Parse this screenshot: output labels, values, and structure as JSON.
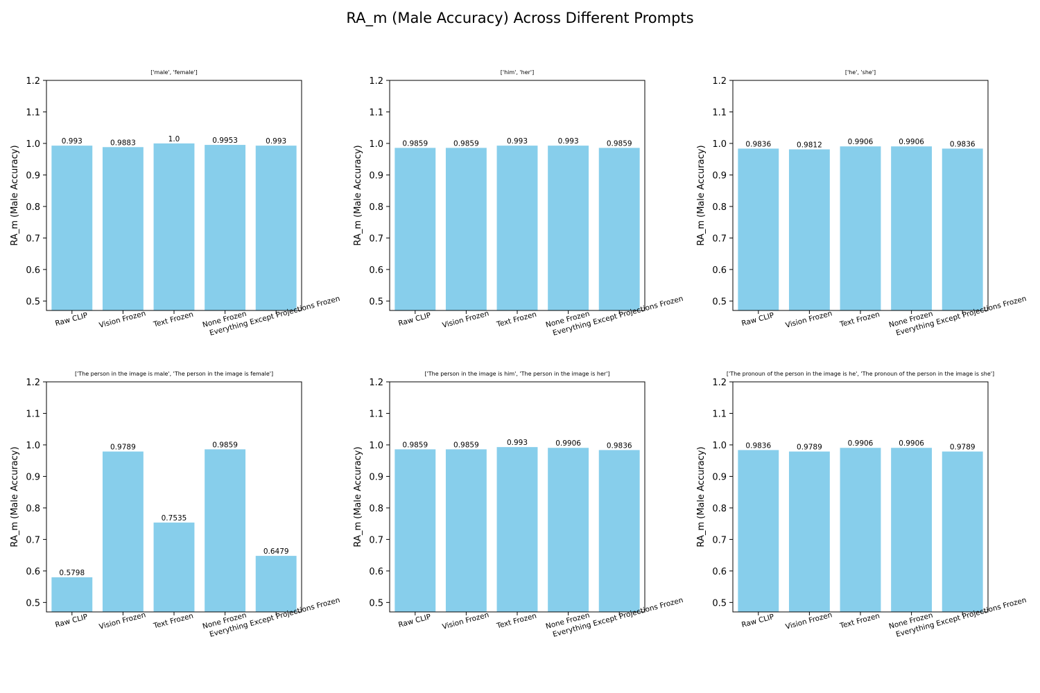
{
  "figure": {
    "title": "RA_m (Male Accuracy) Across Different Prompts"
  },
  "chart_data": [
    {
      "type": "bar",
      "title": "['male', 'female']",
      "ylabel": "RA_m (Male Accuracy)",
      "ylim": [
        0.47,
        1.2
      ],
      "yticks": [
        0.5,
        0.6,
        0.7,
        0.8,
        0.9,
        1.0,
        1.1,
        1.2
      ],
      "categories": [
        "Raw CLIP",
        "Vision Frozen",
        "Text Frozen",
        "None Frozen",
        "Everything Except Projections Frozen"
      ],
      "values": [
        0.993,
        0.9883,
        1.0,
        0.9953,
        0.993
      ],
      "value_labels": [
        "0.993",
        "0.9883",
        "1.0",
        "0.9953",
        "0.993"
      ],
      "bar_color": "#87ceeb"
    },
    {
      "type": "bar",
      "title": "['him', 'her']",
      "ylabel": "RA_m (Male Accuracy)",
      "ylim": [
        0.47,
        1.2
      ],
      "yticks": [
        0.5,
        0.6,
        0.7,
        0.8,
        0.9,
        1.0,
        1.1,
        1.2
      ],
      "categories": [
        "Raw CLIP",
        "Vision Frozen",
        "Text Frozen",
        "None Frozen",
        "Everything Except Projections Frozen"
      ],
      "values": [
        0.9859,
        0.9859,
        0.993,
        0.993,
        0.9859
      ],
      "value_labels": [
        "0.9859",
        "0.9859",
        "0.993",
        "0.993",
        "0.9859"
      ],
      "bar_color": "#87ceeb"
    },
    {
      "type": "bar",
      "title": "['he', 'she']",
      "ylabel": "RA_m (Male Accuracy)",
      "ylim": [
        0.47,
        1.2
      ],
      "yticks": [
        0.5,
        0.6,
        0.7,
        0.8,
        0.9,
        1.0,
        1.1,
        1.2
      ],
      "categories": [
        "Raw CLIP",
        "Vision Frozen",
        "Text Frozen",
        "None Frozen",
        "Everything Except Projections Frozen"
      ],
      "values": [
        0.9836,
        0.9812,
        0.9906,
        0.9906,
        0.9836
      ],
      "value_labels": [
        "0.9836",
        "0.9812",
        "0.9906",
        "0.9906",
        "0.9836"
      ],
      "bar_color": "#87ceeb"
    },
    {
      "type": "bar",
      "title": "['The person in the image is male', 'The person in the image is female']",
      "ylabel": "RA_m (Male Accuracy)",
      "ylim": [
        0.47,
        1.2
      ],
      "yticks": [
        0.5,
        0.6,
        0.7,
        0.8,
        0.9,
        1.0,
        1.1,
        1.2
      ],
      "categories": [
        "Raw CLIP",
        "Vision Frozen",
        "Text Frozen",
        "None Frozen",
        "Everything Except Projections Frozen"
      ],
      "values": [
        0.5798,
        0.9789,
        0.7535,
        0.9859,
        0.6479
      ],
      "value_labels": [
        "0.5798",
        "0.9789",
        "0.7535",
        "0.9859",
        "0.6479"
      ],
      "bar_color": "#87ceeb"
    },
    {
      "type": "bar",
      "title": "['The person in the image is him', 'The person in the image is her']",
      "ylabel": "RA_m (Male Accuracy)",
      "ylim": [
        0.47,
        1.2
      ],
      "yticks": [
        0.5,
        0.6,
        0.7,
        0.8,
        0.9,
        1.0,
        1.1,
        1.2
      ],
      "categories": [
        "Raw CLIP",
        "Vision Frozen",
        "Text Frozen",
        "None Frozen",
        "Everything Except Projections Frozen"
      ],
      "values": [
        0.9859,
        0.9859,
        0.993,
        0.9906,
        0.9836
      ],
      "value_labels": [
        "0.9859",
        "0.9859",
        "0.993",
        "0.9906",
        "0.9836"
      ],
      "bar_color": "#87ceeb"
    },
    {
      "type": "bar",
      "title": "['The pronoun of the person in the image is he', 'The pronoun of the person in the image is she']",
      "ylabel": "RA_m (Male Accuracy)",
      "ylim": [
        0.47,
        1.2
      ],
      "yticks": [
        0.5,
        0.6,
        0.7,
        0.8,
        0.9,
        1.0,
        1.1,
        1.2
      ],
      "categories": [
        "Raw CLIP",
        "Vision Frozen",
        "Text Frozen",
        "None Frozen",
        "Everything Except Projections Frozen"
      ],
      "values": [
        0.9836,
        0.9789,
        0.9906,
        0.9906,
        0.9789
      ],
      "value_labels": [
        "0.9836",
        "0.9789",
        "0.9906",
        "0.9906",
        "0.9789"
      ],
      "bar_color": "#87ceeb"
    }
  ]
}
